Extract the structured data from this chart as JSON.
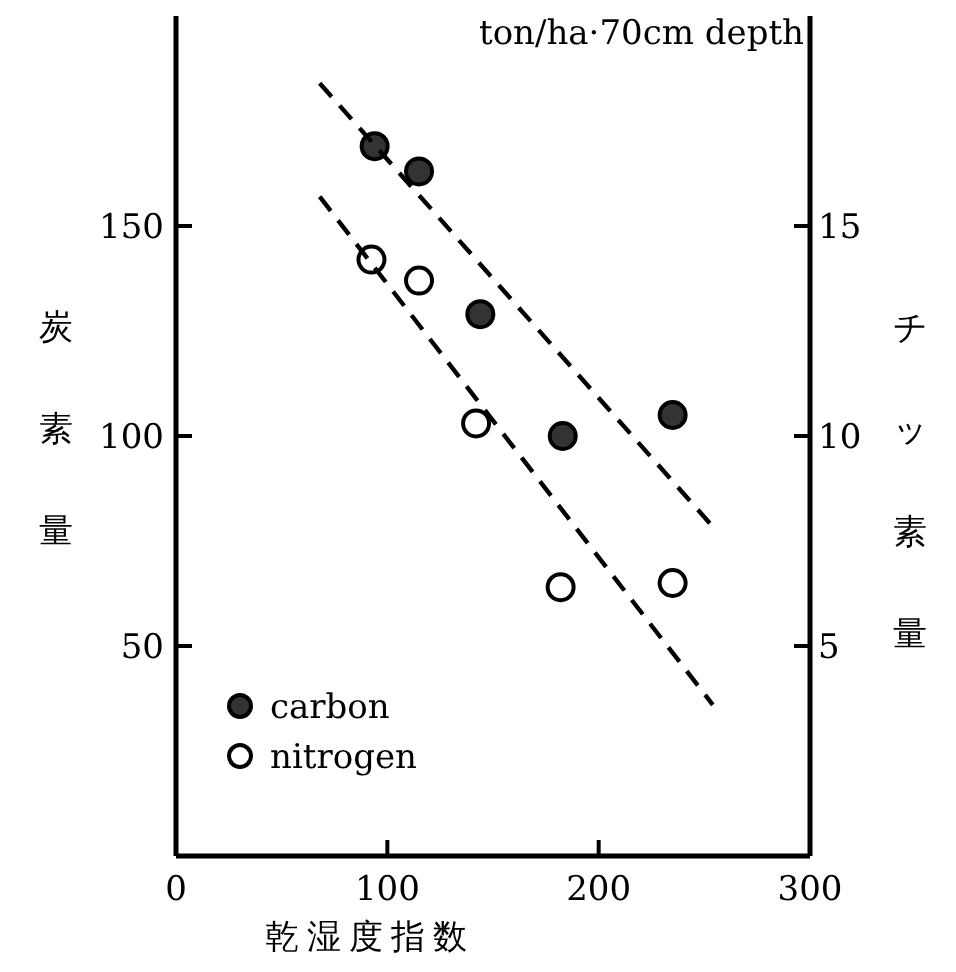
{
  "chart_data": {
    "type": "scatter",
    "xlabel": "乾湿度指数",
    "ylabel": "炭素量",
    "y2label": "チッ素量",
    "annotations": [
      "ton/ha·70cm depth"
    ],
    "series": [
      {
        "name": "carbon",
        "marker": "circle",
        "color": "#333333",
        "x": [
          94,
          115,
          144,
          183,
          235
        ],
        "values": [
          169,
          163,
          129,
          100,
          105
        ]
      },
      {
        "name": "nitrogen",
        "marker": "circle",
        "axis": "y2",
        "color": "#ffffff",
        "x": [
          92.5,
          115,
          142,
          182,
          235
        ],
        "values": [
          14.2,
          13.7,
          10.3,
          6.4,
          6.5
        ]
      },
      {
        "type": "line",
        "color": "#000000",
        "line_style": "dashed",
        "x": [
          68,
          253
        ],
        "values": [
          184,
          79
        ]
      },
      {
        "type": "line",
        "axis": "y2",
        "color": "#000000",
        "line_style": "dashed",
        "x": [
          68,
          254
        ],
        "values": [
          15.7,
          3.6
        ]
      }
    ],
    "xlim": [
      0,
      300
    ],
    "xticks": [
      0,
      100,
      200,
      300
    ],
    "ylim": [
      0,
      200
    ],
    "yticks": [
      50,
      100,
      150
    ],
    "y2lim": [
      0,
      20
    ],
    "y2ticks": [
      5,
      10,
      15
    ],
    "grid": false,
    "legend": "bottom left"
  }
}
